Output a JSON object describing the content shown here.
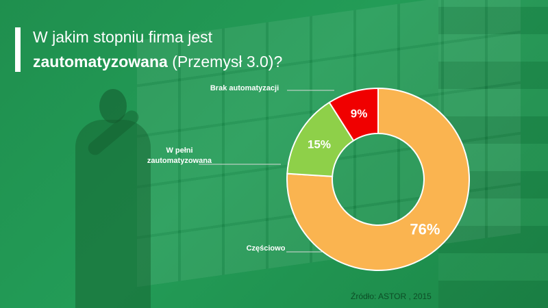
{
  "slide": {
    "title_line1": "W jakim stopniu firma jest",
    "title_bold": "zautomatyzowana",
    "title_rest": " (Przemysł 3.0)?",
    "source": "Źródło: ASTOR , 2015"
  },
  "chart_data": {
    "type": "pie",
    "subtype": "donut",
    "categories": [
      "Częściowo",
      "W pełni zautomatyzowana",
      "Brak automatyzacji"
    ],
    "values": [
      76,
      15,
      9
    ],
    "value_labels": [
      "76%",
      "15%",
      "9%"
    ],
    "colors": [
      "#FAB450",
      "#8ED049",
      "#F00000"
    ],
    "label_colors": [
      "#ffffff",
      "#ffffff",
      "#ffffff"
    ],
    "start_category": "Brak automatyzacji",
    "category_label_lines": [
      [
        "Częściowo"
      ],
      [
        "W pełni",
        "zautomatyzowana"
      ],
      [
        "Brak automatyzacji"
      ]
    ]
  }
}
